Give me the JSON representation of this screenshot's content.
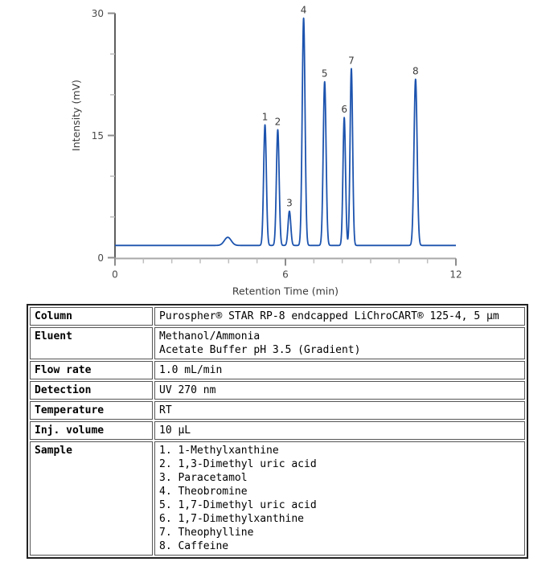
{
  "chart_data": {
    "type": "line",
    "title": "",
    "xlabel": "Retention Time (min)",
    "ylabel": "Intensity (mV)",
    "xlim": [
      0,
      12
    ],
    "ylim": [
      0,
      30
    ],
    "x_major_ticks": [
      0,
      6,
      12
    ],
    "x_minor_ticks": [
      1,
      2,
      3,
      4,
      5,
      7,
      8,
      9,
      10,
      11
    ],
    "y_major_ticks": [
      0,
      15,
      30
    ],
    "y_minor_ticks": [
      5,
      10,
      20,
      25
    ],
    "grid": false,
    "legend": "none",
    "baseline_mv": 1.5,
    "line_color": "#1c53ae",
    "peaks": [
      {
        "label": "1",
        "rt_min": 5.28,
        "height_mv": 14.8,
        "sigma_min": 0.048
      },
      {
        "label": "2",
        "rt_min": 5.73,
        "height_mv": 14.2,
        "sigma_min": 0.048
      },
      {
        "label": "3",
        "rt_min": 6.14,
        "height_mv": 4.2,
        "sigma_min": 0.048
      },
      {
        "label": "4",
        "rt_min": 6.64,
        "height_mv": 27.9,
        "sigma_min": 0.05
      },
      {
        "label": "5",
        "rt_min": 7.38,
        "height_mv": 20.1,
        "sigma_min": 0.05
      },
      {
        "label": "6",
        "rt_min": 8.07,
        "height_mv": 15.7,
        "sigma_min": 0.045
      },
      {
        "label": "7",
        "rt_min": 8.32,
        "height_mv": 21.7,
        "sigma_min": 0.045
      },
      {
        "label": "8",
        "rt_min": 10.58,
        "height_mv": 20.4,
        "sigma_min": 0.055
      },
      {
        "label": "",
        "rt_min": 3.97,
        "height_mv": 1.0,
        "sigma_min": 0.12
      }
    ]
  },
  "method_table": {
    "rows": [
      {
        "label": "Column",
        "lines": [
          "Purospher® STAR RP-8 endcapped LiChroCART® 125-4, 5 µm"
        ]
      },
      {
        "label": "Eluent",
        "lines": [
          "Methanol/Ammonia",
          "Acetate Buffer pH 3.5 (Gradient)"
        ]
      },
      {
        "label": "Flow rate",
        "lines": [
          "1.0 mL/min"
        ]
      },
      {
        "label": "Detection",
        "lines": [
          "UV 270 nm"
        ]
      },
      {
        "label": "Temperature",
        "lines": [
          "RT"
        ]
      },
      {
        "label": "Inj. volume",
        "lines": [
          "10 µL"
        ]
      },
      {
        "label": "Sample",
        "lines": [
          "1. 1-Methylxanthine",
          "2. 1,3-Dimethyl uric acid",
          "3. Paracetamol",
          "4. Theobromine",
          "5. 1,7-Dimethyl uric acid",
          "6. 1,7-Dimethylxanthine",
          "7. Theophylline",
          "8. Caffeine"
        ]
      }
    ]
  },
  "colors": {
    "trace": "#1c53ae",
    "axis_y": "#1a1a1a",
    "axis_x": "#a8a8a8",
    "tick_major": "#8c8c8c",
    "tick_minor": "#bdbdbd",
    "tick_label": "#4a4a4a",
    "peak_label": "#3a3a3a"
  }
}
